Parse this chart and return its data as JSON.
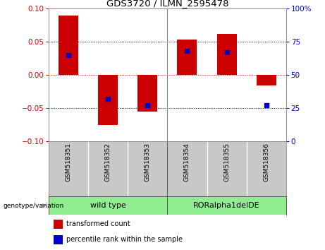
{
  "title": "GDS3720 / ILMN_2595478",
  "samples": [
    "GSM518351",
    "GSM518352",
    "GSM518353",
    "GSM518354",
    "GSM518355",
    "GSM518356"
  ],
  "transformed_counts": [
    0.09,
    -0.075,
    -0.055,
    0.053,
    0.062,
    -0.016
  ],
  "percentile_ranks": [
    65,
    32,
    27,
    68,
    67,
    27
  ],
  "ylim_left": [
    -0.1,
    0.1
  ],
  "ylim_right": [
    0,
    100
  ],
  "yticks_left": [
    -0.1,
    -0.05,
    0,
    0.05,
    0.1
  ],
  "yticks_right": [
    0,
    25,
    50,
    75,
    100
  ],
  "bar_color": "#CC0000",
  "dot_color": "#0000CC",
  "bar_width": 0.5,
  "dot_size": 18,
  "cell_bg": "#C8C8C8",
  "geno_color": "#90EE90",
  "group_ranges": [
    [
      -0.5,
      2.5
    ],
    [
      2.5,
      5.5
    ]
  ],
  "group_labels": [
    "wild type",
    "RORalpha1delDE"
  ]
}
